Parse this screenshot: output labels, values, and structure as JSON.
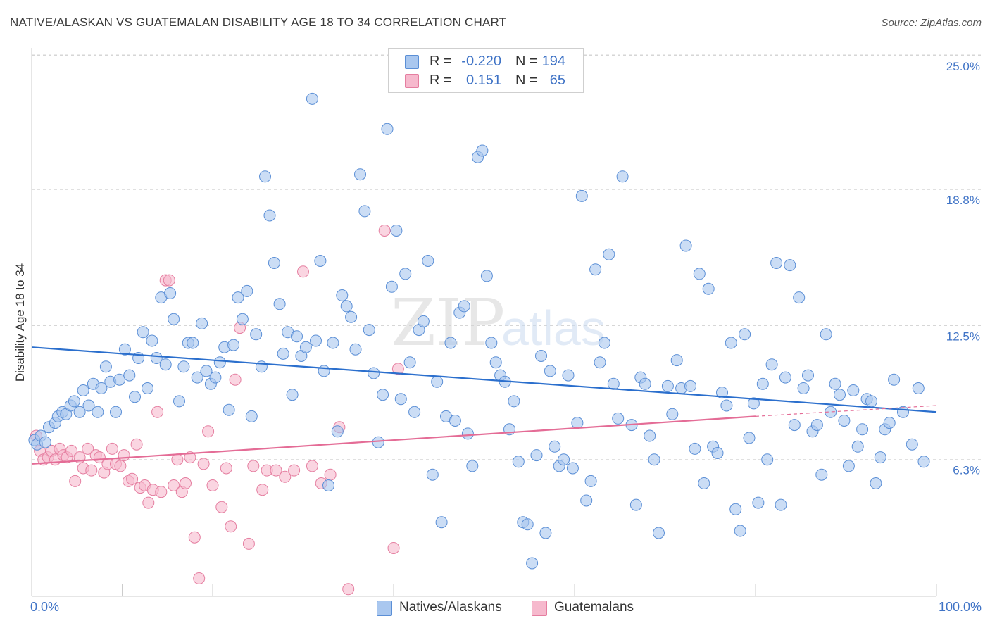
{
  "title": "NATIVE/ALASKAN VS GUATEMALAN DISABILITY AGE 18 TO 34 CORRELATION CHART",
  "source": "Source: ZipAtlas.com",
  "watermark": {
    "zip": "ZIP",
    "atlas": "atlas"
  },
  "legend": {
    "rows": [
      {
        "r_label": "R =",
        "r_value": "-0.220",
        "n_label": "N =",
        "n_value": "194",
        "color": "#a9c7ef"
      },
      {
        "r_label": "R =",
        "r_value": "0.151",
        "n_label": "N =",
        "n_value": "65",
        "color": "#f6b9cd"
      }
    ]
  },
  "bottom_legend": [
    {
      "label": "Natives/Alaskans",
      "color": "#a9c7ef"
    },
    {
      "label": "Guatemalans",
      "color": "#f6b9cd"
    }
  ],
  "colors": {
    "blue_fill": "#a9c7ef",
    "blue_stroke": "#5b8fd6",
    "blue_line": "#2b6fcd",
    "pink_fill": "#f6b9cd",
    "pink_stroke": "#e57ea0",
    "pink_line": "#e46c96",
    "grid": "#d6d6d6",
    "axis_text": "#3f73c6"
  },
  "chart_data": {
    "type": "scatter",
    "title": "NATIVE/ALASKAN VS GUATEMALAN DISABILITY AGE 18 TO 34 CORRELATION CHART",
    "xlabel": "",
    "ylabel": "Disability Age 18 to 34",
    "x_tick_labels": [
      "0.0%",
      "100.0%"
    ],
    "y_tick_labels": [
      "25.0%",
      "18.8%",
      "12.5%",
      "6.3%"
    ],
    "y_ticks": [
      25.0,
      18.8,
      12.5,
      6.3
    ],
    "xlim": [
      0,
      100
    ],
    "ylim": [
      0,
      26
    ],
    "grid": true,
    "legend_position": "top-center",
    "series": [
      {
        "name": "Natives/Alaskans",
        "r": -0.22,
        "n": 194,
        "trend": {
          "x": [
            0,
            100
          ],
          "y": [
            11.5,
            8.5
          ]
        },
        "points": [
          [
            0.3,
            7.2
          ],
          [
            0.6,
            7.0
          ],
          [
            1.0,
            7.4
          ],
          [
            1.5,
            7.1
          ],
          [
            1.9,
            7.8
          ],
          [
            2.6,
            8.0
          ],
          [
            2.9,
            8.3
          ],
          [
            3.4,
            8.5
          ],
          [
            3.8,
            8.4
          ],
          [
            4.3,
            8.8
          ],
          [
            4.7,
            9.0
          ],
          [
            5.3,
            8.5
          ],
          [
            5.7,
            9.5
          ],
          [
            6.3,
            8.8
          ],
          [
            6.8,
            9.8
          ],
          [
            7.3,
            8.5
          ],
          [
            7.7,
            9.6
          ],
          [
            8.2,
            10.6
          ],
          [
            8.7,
            9.9
          ],
          [
            9.3,
            8.5
          ],
          [
            9.7,
            10.0
          ],
          [
            10.3,
            11.4
          ],
          [
            10.8,
            10.2
          ],
          [
            11.4,
            9.2
          ],
          [
            11.8,
            11.0
          ],
          [
            12.3,
            12.2
          ],
          [
            12.8,
            9.6
          ],
          [
            13.3,
            11.8
          ],
          [
            13.8,
            11.0
          ],
          [
            14.3,
            13.8
          ],
          [
            14.8,
            10.7
          ],
          [
            15.3,
            14.0
          ],
          [
            15.7,
            12.8
          ],
          [
            16.3,
            9.0
          ],
          [
            16.8,
            10.6
          ],
          [
            17.3,
            11.7
          ],
          [
            17.8,
            11.7
          ],
          [
            18.3,
            10.1
          ],
          [
            18.8,
            12.6
          ],
          [
            19.3,
            10.4
          ],
          [
            19.8,
            9.8
          ],
          [
            20.3,
            10.1
          ],
          [
            20.8,
            10.8
          ],
          [
            21.3,
            11.5
          ],
          [
            21.8,
            8.6
          ],
          [
            22.3,
            11.6
          ],
          [
            22.8,
            13.8
          ],
          [
            23.3,
            12.8
          ],
          [
            23.8,
            14.1
          ],
          [
            24.3,
            8.3
          ],
          [
            24.8,
            12.1
          ],
          [
            25.4,
            10.6
          ],
          [
            25.8,
            19.4
          ],
          [
            26.3,
            17.6
          ],
          [
            26.8,
            15.4
          ],
          [
            27.4,
            13.5
          ],
          [
            27.8,
            11.2
          ],
          [
            28.3,
            12.2
          ],
          [
            28.8,
            9.3
          ],
          [
            29.3,
            12.0
          ],
          [
            29.8,
            11.1
          ],
          [
            30.3,
            11.5
          ],
          [
            31.0,
            23.0
          ],
          [
            31.4,
            11.8
          ],
          [
            31.9,
            15.5
          ],
          [
            32.3,
            10.4
          ],
          [
            32.8,
            5.1
          ],
          [
            33.3,
            11.7
          ],
          [
            33.8,
            7.6
          ],
          [
            34.3,
            13.9
          ],
          [
            34.8,
            13.4
          ],
          [
            35.3,
            12.9
          ],
          [
            35.8,
            11.4
          ],
          [
            36.3,
            19.5
          ],
          [
            36.8,
            17.8
          ],
          [
            37.3,
            12.3
          ],
          [
            37.8,
            10.3
          ],
          [
            38.3,
            7.1
          ],
          [
            38.8,
            9.3
          ],
          [
            39.3,
            21.6
          ],
          [
            39.8,
            14.3
          ],
          [
            40.3,
            16.9
          ],
          [
            40.8,
            9.1
          ],
          [
            41.3,
            14.9
          ],
          [
            41.8,
            10.8
          ],
          [
            42.3,
            8.5
          ],
          [
            42.8,
            12.3
          ],
          [
            43.3,
            12.7
          ],
          [
            43.8,
            15.5
          ],
          [
            44.3,
            5.6
          ],
          [
            44.8,
            9.9
          ],
          [
            45.3,
            3.4
          ],
          [
            45.8,
            8.3
          ],
          [
            46.3,
            11.7
          ],
          [
            46.8,
            8.1
          ],
          [
            47.3,
            13.1
          ],
          [
            47.8,
            13.4
          ],
          [
            48.2,
            7.5
          ],
          [
            48.7,
            6.0
          ],
          [
            49.3,
            20.3
          ],
          [
            49.8,
            20.6
          ],
          [
            50.3,
            14.8
          ],
          [
            50.8,
            11.7
          ],
          [
            51.3,
            10.8
          ],
          [
            51.8,
            10.2
          ],
          [
            52.3,
            9.9
          ],
          [
            52.8,
            7.7
          ],
          [
            53.3,
            9.0
          ],
          [
            53.8,
            6.2
          ],
          [
            54.3,
            3.4
          ],
          [
            54.8,
            3.3
          ],
          [
            55.3,
            1.5
          ],
          [
            55.8,
            6.5
          ],
          [
            56.3,
            11.1
          ],
          [
            56.8,
            2.9
          ],
          [
            57.3,
            10.4
          ],
          [
            57.8,
            6.9
          ],
          [
            58.3,
            6.0
          ],
          [
            58.8,
            6.3
          ],
          [
            59.3,
            10.2
          ],
          [
            59.8,
            5.9
          ],
          [
            60.3,
            8.0
          ],
          [
            60.8,
            18.5
          ],
          [
            61.3,
            4.4
          ],
          [
            61.8,
            5.3
          ],
          [
            62.3,
            15.1
          ],
          [
            62.8,
            10.8
          ],
          [
            63.3,
            11.7
          ],
          [
            63.8,
            15.8
          ],
          [
            64.3,
            9.8
          ],
          [
            64.8,
            8.2
          ],
          [
            65.3,
            19.4
          ],
          [
            66.3,
            7.9
          ],
          [
            66.8,
            4.2
          ],
          [
            67.3,
            10.1
          ],
          [
            67.8,
            9.8
          ],
          [
            68.3,
            7.4
          ],
          [
            68.8,
            6.3
          ],
          [
            69.3,
            2.9
          ],
          [
            70.3,
            9.7
          ],
          [
            70.8,
            8.4
          ],
          [
            71.3,
            10.9
          ],
          [
            71.8,
            9.6
          ],
          [
            72.3,
            16.2
          ],
          [
            72.8,
            9.7
          ],
          [
            73.3,
            6.8
          ],
          [
            73.8,
            14.9
          ],
          [
            74.3,
            5.2
          ],
          [
            74.8,
            14.2
          ],
          [
            75.3,
            6.9
          ],
          [
            75.8,
            6.6
          ],
          [
            76.3,
            9.4
          ],
          [
            76.8,
            8.8
          ],
          [
            77.3,
            11.7
          ],
          [
            77.8,
            4.0
          ],
          [
            78.3,
            3.0
          ],
          [
            78.8,
            12.1
          ],
          [
            79.3,
            7.3
          ],
          [
            79.8,
            8.9
          ],
          [
            80.3,
            4.3
          ],
          [
            80.8,
            9.8
          ],
          [
            81.3,
            6.3
          ],
          [
            81.8,
            10.7
          ],
          [
            82.3,
            15.4
          ],
          [
            82.8,
            4.2
          ],
          [
            83.3,
            10.1
          ],
          [
            83.8,
            15.3
          ],
          [
            84.3,
            7.9
          ],
          [
            84.8,
            13.8
          ],
          [
            85.3,
            9.6
          ],
          [
            85.8,
            10.2
          ],
          [
            86.3,
            7.6
          ],
          [
            86.8,
            7.9
          ],
          [
            87.3,
            5.6
          ],
          [
            87.8,
            12.1
          ],
          [
            88.3,
            8.5
          ],
          [
            88.8,
            9.8
          ],
          [
            89.3,
            9.3
          ],
          [
            89.8,
            8.1
          ],
          [
            90.3,
            6.0
          ],
          [
            90.8,
            9.5
          ],
          [
            91.3,
            6.9
          ],
          [
            91.8,
            7.7
          ],
          [
            92.3,
            9.1
          ],
          [
            92.8,
            9.0
          ],
          [
            93.3,
            5.2
          ],
          [
            93.8,
            6.4
          ],
          [
            94.3,
            7.7
          ],
          [
            94.8,
            8.0
          ],
          [
            95.3,
            10.0
          ],
          [
            96.3,
            8.5
          ],
          [
            97.3,
            7.0
          ],
          [
            98.0,
            9.6
          ],
          [
            98.6,
            6.2
          ]
        ]
      },
      {
        "name": "Guatemalans",
        "r": 0.151,
        "n": 65,
        "trend": {
          "x": [
            0,
            80
          ],
          "y": [
            6.1,
            8.3
          ]
        },
        "trend_extension": {
          "x": [
            80,
            100
          ],
          "y": [
            8.3,
            8.8
          ]
        },
        "points": [
          [
            0.5,
            7.4
          ],
          [
            0.9,
            6.7
          ],
          [
            1.3,
            6.3
          ],
          [
            1.8,
            6.4
          ],
          [
            2.2,
            6.7
          ],
          [
            2.6,
            6.3
          ],
          [
            3.1,
            6.8
          ],
          [
            3.5,
            6.5
          ],
          [
            3.9,
            6.4
          ],
          [
            4.4,
            6.7
          ],
          [
            4.8,
            5.3
          ],
          [
            5.3,
            6.4
          ],
          [
            5.7,
            5.9
          ],
          [
            6.2,
            6.8
          ],
          [
            6.6,
            5.8
          ],
          [
            7.1,
            6.5
          ],
          [
            7.5,
            6.4
          ],
          [
            8.0,
            5.7
          ],
          [
            8.4,
            6.1
          ],
          [
            8.9,
            6.8
          ],
          [
            9.3,
            6.1
          ],
          [
            9.8,
            6.0
          ],
          [
            10.2,
            6.5
          ],
          [
            10.7,
            5.3
          ],
          [
            11.1,
            5.4
          ],
          [
            11.6,
            7.0
          ],
          [
            12.0,
            5.0
          ],
          [
            12.5,
            5.1
          ],
          [
            12.9,
            4.3
          ],
          [
            13.4,
            4.9
          ],
          [
            13.9,
            8.5
          ],
          [
            14.3,
            4.8
          ],
          [
            14.8,
            14.6
          ],
          [
            15.2,
            14.6
          ],
          [
            15.7,
            5.1
          ],
          [
            16.1,
            6.3
          ],
          [
            16.6,
            4.8
          ],
          [
            17.0,
            5.2
          ],
          [
            17.5,
            6.4
          ],
          [
            18.0,
            2.7
          ],
          [
            18.5,
            0.8
          ],
          [
            19.0,
            6.1
          ],
          [
            19.5,
            7.6
          ],
          [
            20.0,
            5.1
          ],
          [
            21.0,
            4.1
          ],
          [
            21.5,
            5.9
          ],
          [
            22.0,
            3.2
          ],
          [
            22.5,
            10.0
          ],
          [
            23.0,
            12.4
          ],
          [
            24.0,
            2.4
          ],
          [
            24.5,
            6.0
          ],
          [
            25.5,
            4.9
          ],
          [
            26.0,
            5.8
          ],
          [
            27.0,
            5.8
          ],
          [
            28.0,
            5.5
          ],
          [
            29.0,
            5.8
          ],
          [
            30.0,
            15.0
          ],
          [
            31.0,
            6.0
          ],
          [
            32.0,
            5.2
          ],
          [
            33.0,
            5.6
          ],
          [
            34.0,
            7.8
          ],
          [
            35.0,
            0.3
          ],
          [
            39.0,
            16.9
          ],
          [
            40.0,
            2.2
          ],
          [
            40.5,
            10.5
          ]
        ]
      }
    ]
  }
}
